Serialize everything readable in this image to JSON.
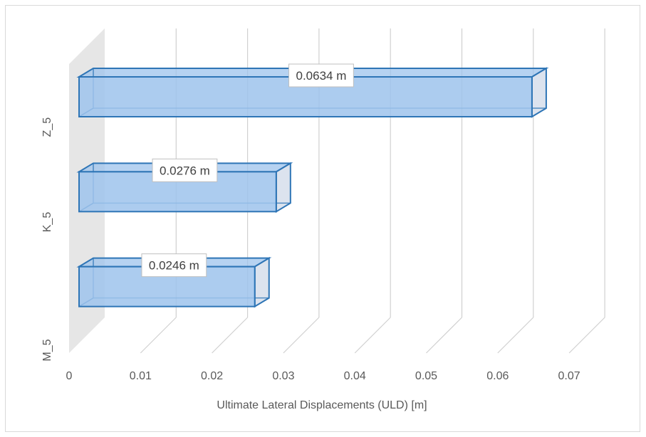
{
  "chart_data": {
    "type": "bar",
    "orientation": "horizontal",
    "style": "3d-clustered-bar",
    "categories": [
      "M_5",
      "K_5",
      "Z_5"
    ],
    "values": [
      0.0246,
      0.0276,
      0.0634
    ],
    "data_labels": [
      "0.0246 m",
      "0.0276 m",
      "0.0634 m"
    ],
    "title": "",
    "xlabel": "Ultimate Lateral Displacements (ULD) [m]",
    "ylabel": "",
    "xlim": [
      0,
      0.07
    ],
    "x_ticks": [
      "0",
      "0.01",
      "0.02",
      "0.03",
      "0.04",
      "0.05",
      "0.06",
      "0.07"
    ],
    "grid": "vertical",
    "legend": "none",
    "colors": {
      "bar_fill": "#9dc3ec",
      "bar_edge": "#2e75b6",
      "bar_side": "#dce3ee",
      "gridline": "#d0d0d0",
      "wall": "#e6e6e6"
    }
  }
}
